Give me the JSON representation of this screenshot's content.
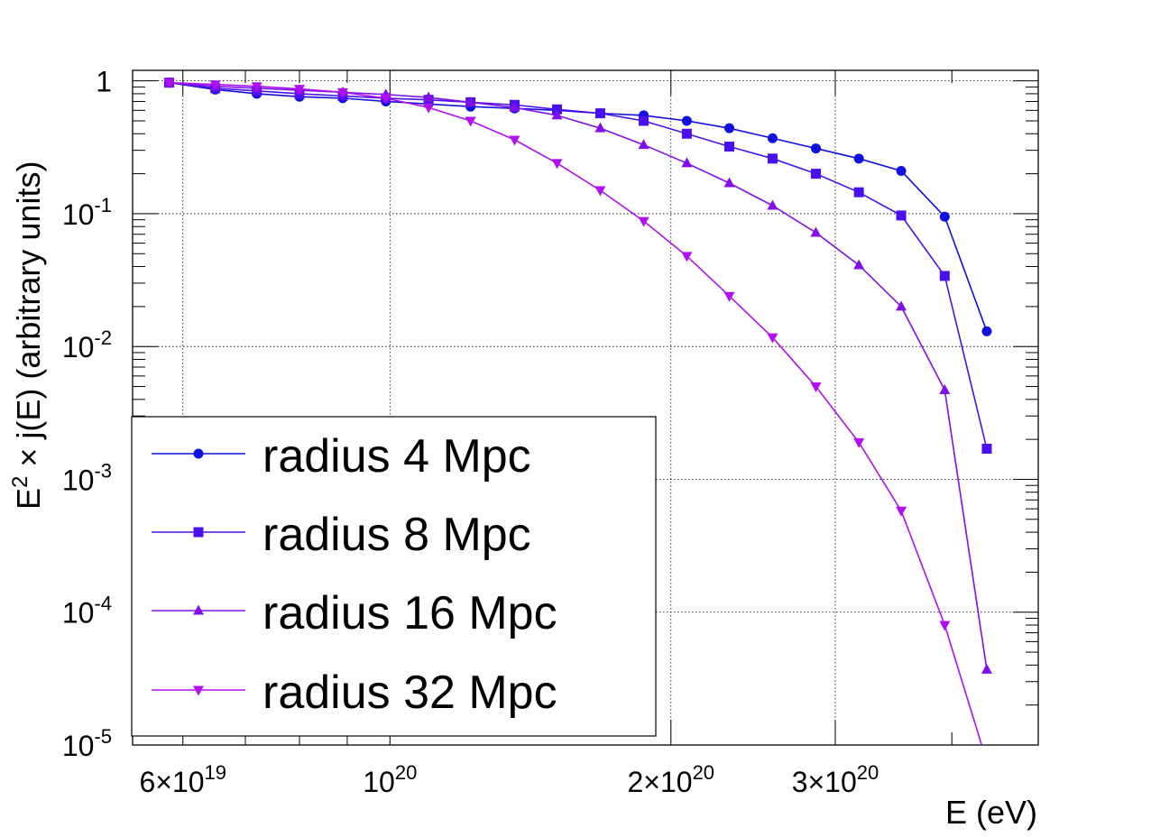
{
  "chart_data": {
    "type": "line",
    "x_scale": "log",
    "y_scale": "log",
    "xlabel": "E (eV)",
    "ylabel": "E2 × j(E) (arbitrary units)",
    "xlim": [
      5.3e+19,
      4.95e+20
    ],
    "ylim": [
      1e-05,
      1.2
    ],
    "grid": true,
    "legend_position": "bottom-left",
    "x_ticks": [
      {
        "value": 6e+19,
        "mantissa": "6×",
        "base": "10",
        "exp": "19"
      },
      {
        "value": 1e+20,
        "mantissa": "",
        "base": "10",
        "exp": "20"
      },
      {
        "value": 2e+20,
        "mantissa": "2×",
        "base": "10",
        "exp": "20"
      },
      {
        "value": 3e+20,
        "mantissa": "3×",
        "base": "10",
        "exp": "20"
      }
    ],
    "y_ticks": [
      {
        "value": 1,
        "plain": "1"
      },
      {
        "value": 0.1,
        "base": "10",
        "exp": "-1"
      },
      {
        "value": 0.01,
        "base": "10",
        "exp": "-2"
      },
      {
        "value": 0.001,
        "base": "10",
        "exp": "-3"
      },
      {
        "value": 0.0001,
        "base": "10",
        "exp": "-4"
      },
      {
        "value": 1e-05,
        "base": "10",
        "exp": "-5"
      }
    ],
    "x": [
      5.8e+19,
      6.5e+19,
      7.2e+19,
      8e+19,
      8.9e+19,
      9.9e+19,
      1.1e+20,
      1.22e+20,
      1.36e+20,
      1.51e+20,
      1.68e+20,
      1.87e+20,
      2.08e+20,
      2.31e+20,
      2.57e+20,
      2.86e+20,
      3.18e+20,
      3.53e+20,
      3.93e+20,
      4.36e+20
    ],
    "series": [
      {
        "name": "radius 4 Mpc",
        "color": "#1010e0",
        "marker": "circle",
        "values": [
          0.97,
          0.86,
          0.8,
          0.76,
          0.74,
          0.7,
          0.67,
          0.64,
          0.62,
          0.6,
          0.57,
          0.55,
          0.5,
          0.44,
          0.37,
          0.31,
          0.26,
          0.21,
          0.095,
          0.013
        ]
      },
      {
        "name": "radius 8 Mpc",
        "color": "#4a10f0",
        "marker": "square",
        "values": [
          0.97,
          0.88,
          0.84,
          0.8,
          0.77,
          0.74,
          0.72,
          0.69,
          0.66,
          0.61,
          0.57,
          0.5,
          0.4,
          0.32,
          0.26,
          0.2,
          0.145,
          0.097,
          0.034,
          0.0017
        ]
      },
      {
        "name": "radius 16 Mpc",
        "color": "#8010e8",
        "marker": "triangle-up",
        "values": [
          0.97,
          0.91,
          0.88,
          0.85,
          0.82,
          0.79,
          0.75,
          0.69,
          0.63,
          0.55,
          0.44,
          0.33,
          0.24,
          0.17,
          0.115,
          0.072,
          0.041,
          0.02,
          0.0047,
          3.7e-05
        ]
      },
      {
        "name": "radius 32 Mpc",
        "color": "#b010f0",
        "marker": "triangle-down",
        "values": [
          0.97,
          0.94,
          0.91,
          0.87,
          0.82,
          0.74,
          0.63,
          0.5,
          0.36,
          0.24,
          0.15,
          0.088,
          0.048,
          0.024,
          0.0117,
          0.005,
          0.0019,
          0.00058,
          8e-05,
          7.5e-06
        ]
      }
    ]
  }
}
